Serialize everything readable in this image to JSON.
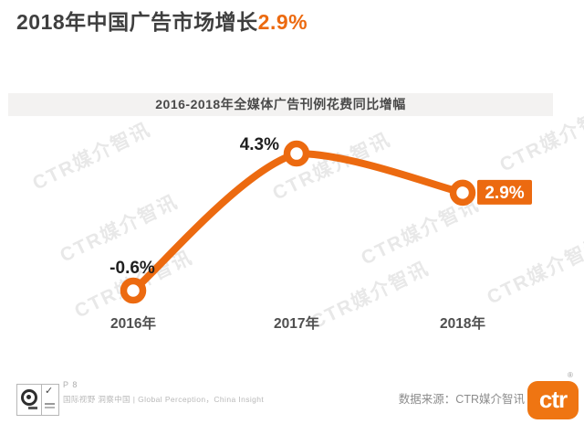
{
  "header": {
    "title_prefix": "2018年中国广告市场增长",
    "title_highlight": "2.9%"
  },
  "chart_data": {
    "type": "line",
    "title": "2016-2018年全媒体广告刊例花费同比增幅",
    "categories": [
      "2016年",
      "2017年",
      "2018年"
    ],
    "values": [
      -0.6,
      4.3,
      2.9
    ],
    "labels": [
      "-0.6%",
      "4.3%",
      "2.9%"
    ],
    "highlight_index": 2,
    "unit": "%",
    "ylim": [
      -2,
      6
    ],
    "grid": false,
    "legend": "none",
    "xlabel": "",
    "ylabel": "",
    "line_color": "#EC6A10",
    "marker_style": "open-circle",
    "highlight_badge_color": "#EC6A10"
  },
  "watermark": {
    "text": "CTR媒介智讯"
  },
  "footer": {
    "page_number": "P 8",
    "tagline": "国际视野 洞察中国 | Global Perception，China Insight",
    "source_label": "数据来源：CTR媒介智讯",
    "logo_text": "ctr",
    "registered_mark": "®"
  },
  "colors": {
    "accent": "#EC6A10",
    "title_text": "#3F3F3F",
    "value_label_text": "#1F1F1F",
    "axis_label_text": "#4F4F4F",
    "chart_title_band_bg": "#F3F2F1",
    "footer_text": "#9C9C9C",
    "watermark_text": "#C9C9C9"
  }
}
